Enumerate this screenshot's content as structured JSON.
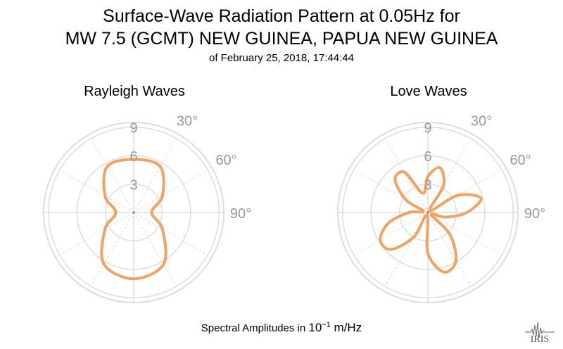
{
  "header": {
    "title_line1": "Surface-Wave Radiation Pattern at 0.05Hz for",
    "title_line2": "MW 7.5 (GCMT) NEW GUINEA, PAPUA NEW GUINEA",
    "subtitle": "of February 25, 2018, 17:44:44"
  },
  "footer": {
    "prefix": "Spectral Amplitudes in ",
    "unit_base": "10",
    "unit_exp": "−1",
    "unit_suffix": " m/Hz"
  },
  "logo": {
    "text": "IRIS"
  },
  "colors": {
    "series": "#f4a261",
    "grid": "#dddddd",
    "tick": "#999999"
  },
  "chart_data": [
    {
      "type": "polar-line",
      "title": "Rayleigh Waves",
      "radial_ticks": [
        "3",
        "6",
        "9"
      ],
      "radial_max": 9.5,
      "angle_ticks": [
        "30°",
        "60°",
        "90°"
      ],
      "angle_direction": "clockwise-from-north",
      "series": [
        {
          "azimuth_deg": [
            0,
            30,
            60,
            90,
            120,
            150,
            180,
            210,
            240,
            270,
            300,
            330
          ],
          "amplitude": [
            5.6,
            5.6,
            3.5,
            1.9,
            3.5,
            6.3,
            7.0,
            6.3,
            3.5,
            1.9,
            3.5,
            5.6
          ]
        }
      ]
    },
    {
      "type": "polar-line",
      "title": "Love Waves",
      "radial_ticks": [
        "3",
        "6",
        "9"
      ],
      "radial_max": 9.5,
      "angle_ticks": [
        "30°",
        "60°",
        "90°"
      ],
      "angle_direction": "clockwise-from-north",
      "series": [
        {
          "azimuth_deg": [
            0,
            15,
            30,
            45,
            60,
            75,
            90,
            105,
            120,
            135,
            150,
            165,
            180,
            195,
            210,
            225,
            240,
            255,
            270,
            285,
            300,
            315,
            330,
            345
          ],
          "amplitude": [
            3.8,
            4.9,
            3.3,
            0.3,
            3.6,
            5.8,
            4.1,
            1.9,
            0.4,
            3.3,
            5.9,
            6.5,
            4.3,
            0.3,
            3.0,
            5.5,
            5.8,
            4.3,
            2.0,
            0.5,
            2.7,
            4.9,
            4.9,
            2.1
          ]
        }
      ]
    }
  ]
}
